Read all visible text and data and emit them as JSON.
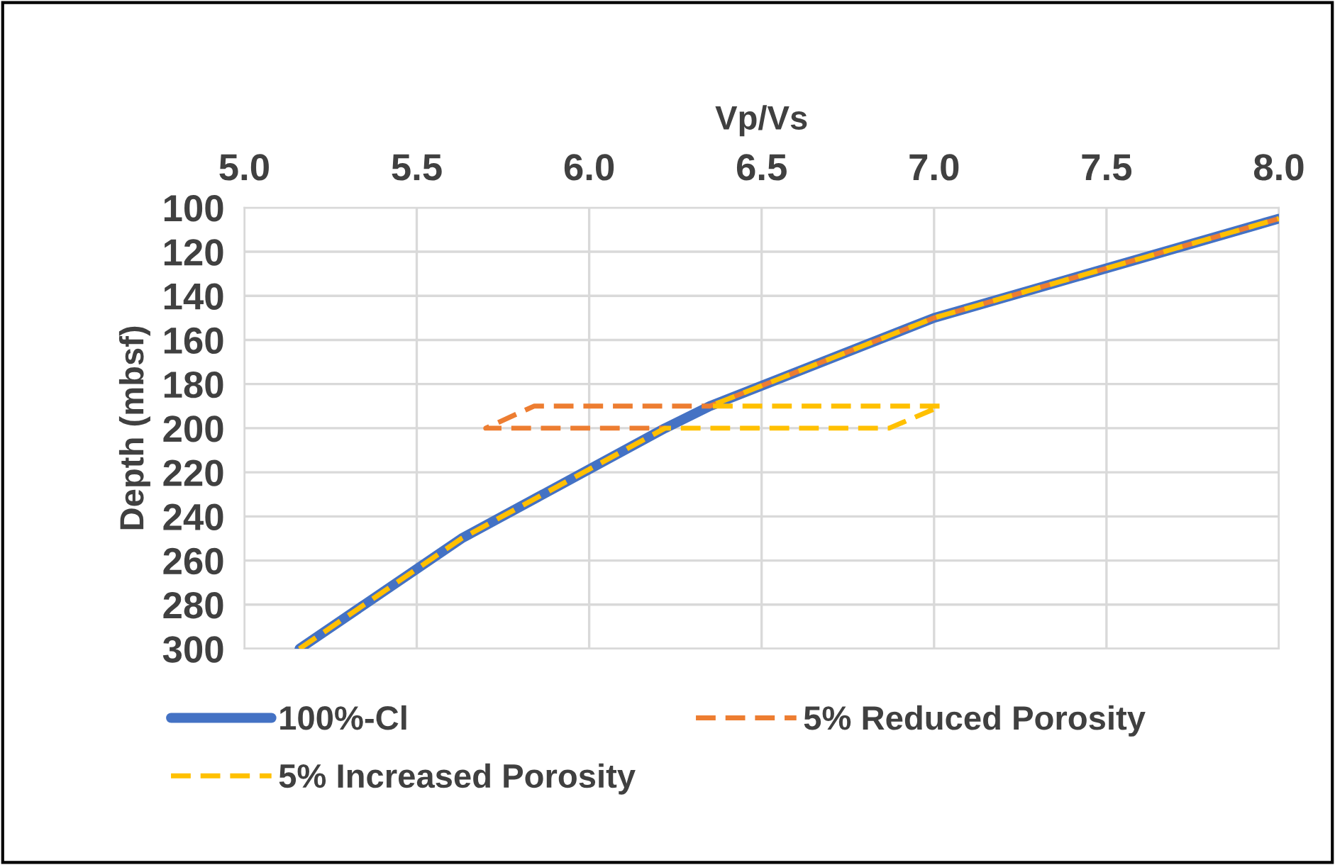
{
  "chart_data": {
    "type": "line",
    "xlabel": "Vp/Vs",
    "ylabel": "Depth (mbsf)",
    "xlim": [
      5.0,
      8.0
    ],
    "xticks": [
      {
        "value": 5.0,
        "label": "5.0"
      },
      {
        "value": 5.5,
        "label": "5.5"
      },
      {
        "value": 6.0,
        "label": "6.0"
      },
      {
        "value": 6.5,
        "label": "6.5"
      },
      {
        "value": 7.0,
        "label": "7.0"
      },
      {
        "value": 7.5,
        "label": "7.5"
      },
      {
        "value": 8.0,
        "label": "8.0"
      }
    ],
    "ylim": [
      300,
      100
    ],
    "yticks": [
      100,
      120,
      140,
      160,
      180,
      200,
      220,
      240,
      260,
      280,
      300
    ],
    "grid": true,
    "legend": "bottom",
    "marker": "none",
    "series": [
      {
        "name": "100%-Cl",
        "color": "#4472c4",
        "line_style": "solid",
        "x": [
          5.16,
          5.63,
          6.22,
          6.35,
          7.0,
          8.0
        ],
        "values": [
          300,
          250,
          200,
          190,
          150,
          105
        ]
      },
      {
        "name": "5% Reduced Porosity",
        "color": "#ed7d31",
        "line_style": "dashed",
        "x": [
          5.16,
          5.63,
          6.22,
          5.7,
          5.84,
          6.35,
          7.0,
          8.0
        ],
        "values": [
          300,
          250,
          200,
          200,
          190,
          190,
          150,
          105
        ]
      },
      {
        "name": "5% Increased Porosity",
        "color": "#ffc000",
        "line_style": "dashed",
        "x": [
          5.16,
          5.63,
          6.22,
          6.87,
          7.02,
          6.35,
          7.0,
          8.0
        ],
        "values": [
          300,
          250,
          200,
          200,
          190,
          190,
          150,
          105
        ]
      }
    ]
  }
}
